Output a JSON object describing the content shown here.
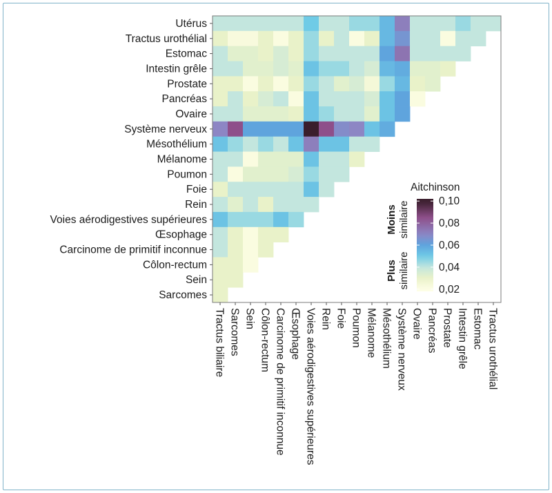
{
  "chart_data": {
    "type": "heatmap",
    "y_categories": [
      "Utérus",
      "Tractus urothélial",
      "Estomac",
      "Intestin grêle",
      "Prostate",
      "Pancréas",
      "Ovaire",
      "Système nerveux",
      "Mésothélium",
      "Mélanome",
      "Poumon",
      "Foie",
      "Rein",
      "Voies aérodigestives supérieures",
      "Œsophage",
      "Carcinome de primitif inconnue",
      "Côlon-rectum",
      "Sein",
      "Sarcomes"
    ],
    "x_categories": [
      "Tractus biliaire",
      "Sarcomes",
      "Sein",
      "Côlon-rectum",
      "Carcinome de primitif inconnue",
      "Œsophage",
      "Voies aérodigestives supérieures",
      "Rein",
      "Foie",
      "Poumon",
      "Mélanome",
      "Mésothélium",
      "Système nerveux",
      "Ovaire",
      "Pancréas",
      "Prostate",
      "Intestin grêle",
      "Estomac",
      "Tractus urothélial"
    ],
    "rows": [
      [
        0.04,
        0.04,
        0.04,
        0.04,
        0.04,
        0.04,
        0.05,
        0.04,
        0.04,
        0.045,
        0.045,
        0.055,
        0.072,
        0.04,
        0.04,
        0.04,
        0.045,
        0.04,
        0.04
      ],
      [
        0.03,
        0.023,
        0.023,
        0.03,
        0.022,
        0.03,
        0.045,
        0.03,
        0.04,
        0.022,
        0.03,
        0.055,
        0.065,
        0.04,
        0.04,
        0.022,
        0.04,
        0.04,
        null
      ],
      [
        0.04,
        0.032,
        0.032,
        0.03,
        0.035,
        0.03,
        0.045,
        0.04,
        0.04,
        0.04,
        0.04,
        0.06,
        0.075,
        0.04,
        0.04,
        0.04,
        0.04,
        null,
        null
      ],
      [
        0.04,
        0.04,
        0.032,
        0.032,
        0.035,
        0.032,
        0.052,
        0.045,
        0.045,
        0.04,
        0.035,
        0.055,
        0.058,
        0.032,
        0.032,
        0.03,
        null,
        null,
        null
      ],
      [
        0.03,
        0.03,
        0.022,
        0.03,
        0.022,
        0.03,
        0.045,
        0.04,
        0.032,
        0.035,
        0.025,
        0.045,
        0.055,
        0.03,
        0.032,
        null,
        null,
        null,
        null
      ],
      [
        0.03,
        0.04,
        0.03,
        0.035,
        0.04,
        0.022,
        0.052,
        0.04,
        0.04,
        0.04,
        0.035,
        0.052,
        0.06,
        0.022,
        null,
        null,
        null,
        null,
        null
      ],
      [
        0.04,
        0.04,
        0.032,
        0.032,
        0.032,
        0.03,
        0.052,
        0.045,
        0.04,
        0.04,
        0.032,
        0.052,
        0.06,
        null,
        null,
        null,
        null,
        null,
        null
      ],
      [
        0.07,
        0.085,
        0.06,
        0.06,
        0.06,
        0.06,
        0.1,
        0.085,
        0.068,
        0.07,
        0.052,
        0.058,
        null,
        null,
        null,
        null,
        null,
        null,
        null
      ],
      [
        0.052,
        0.045,
        0.04,
        0.045,
        0.04,
        0.052,
        0.072,
        0.052,
        0.052,
        0.04,
        0.04,
        null,
        null,
        null,
        null,
        null,
        null,
        null,
        null
      ],
      [
        0.04,
        0.04,
        0.022,
        0.032,
        0.032,
        0.032,
        0.052,
        0.04,
        0.04,
        0.03,
        null,
        null,
        null,
        null,
        null,
        null,
        null,
        null,
        null
      ],
      [
        0.04,
        0.022,
        0.032,
        0.032,
        0.032,
        0.035,
        0.045,
        0.04,
        0.04,
        null,
        null,
        null,
        null,
        null,
        null,
        null,
        null,
        null,
        null
      ],
      [
        0.03,
        0.04,
        0.04,
        0.04,
        0.04,
        0.04,
        0.052,
        0.04,
        null,
        null,
        null,
        null,
        null,
        null,
        null,
        null,
        null,
        null,
        null
      ],
      [
        0.04,
        0.032,
        0.04,
        0.03,
        0.04,
        0.04,
        0.04,
        null,
        null,
        null,
        null,
        null,
        null,
        null,
        null,
        null,
        null,
        null,
        null
      ],
      [
        0.052,
        0.045,
        0.045,
        0.045,
        0.052,
        0.045,
        null,
        null,
        null,
        null,
        null,
        null,
        null,
        null,
        null,
        null,
        null,
        null,
        null
      ],
      [
        0.04,
        0.03,
        0.022,
        0.03,
        0.03,
        null,
        null,
        null,
        null,
        null,
        null,
        null,
        null,
        null,
        null,
        null,
        null,
        null,
        null
      ],
      [
        0.04,
        0.03,
        0.022,
        0.03,
        null,
        null,
        null,
        null,
        null,
        null,
        null,
        null,
        null,
        null,
        null,
        null,
        null,
        null,
        null
      ],
      [
        0.03,
        0.03,
        0.022,
        null,
        null,
        null,
        null,
        null,
        null,
        null,
        null,
        null,
        null,
        null,
        null,
        null,
        null,
        null,
        null
      ],
      [
        0.03,
        0.03,
        null,
        null,
        null,
        null,
        null,
        null,
        null,
        null,
        null,
        null,
        null,
        null,
        null,
        null,
        null,
        null,
        null
      ],
      [
        0.03,
        null,
        null,
        null,
        null,
        null,
        null,
        null,
        null,
        null,
        null,
        null,
        null,
        null,
        null,
        null,
        null,
        null,
        null
      ]
    ],
    "legend": {
      "title": "Aitchinson",
      "ticks": [
        "0,10",
        "0,08",
        "0,06",
        "0,04",
        "0,02"
      ],
      "tick_values": [
        0.1,
        0.08,
        0.06,
        0.04,
        0.02
      ],
      "range": [
        0.018,
        0.102
      ],
      "label_top": [
        "Moins",
        "similaire"
      ],
      "label_bottom": [
        "Plus",
        "similaire"
      ],
      "placement": "inside-right"
    },
    "colorscale": [
      [
        0.02,
        "#fefee6"
      ],
      [
        0.03,
        "#e9f2c9"
      ],
      [
        0.04,
        "#c3e6de"
      ],
      [
        0.05,
        "#6fcbe6"
      ],
      [
        0.06,
        "#5fa4dd"
      ],
      [
        0.07,
        "#8d86c4"
      ],
      [
        0.085,
        "#8e4f8a"
      ],
      [
        0.1,
        "#3a1e2c"
      ]
    ]
  }
}
